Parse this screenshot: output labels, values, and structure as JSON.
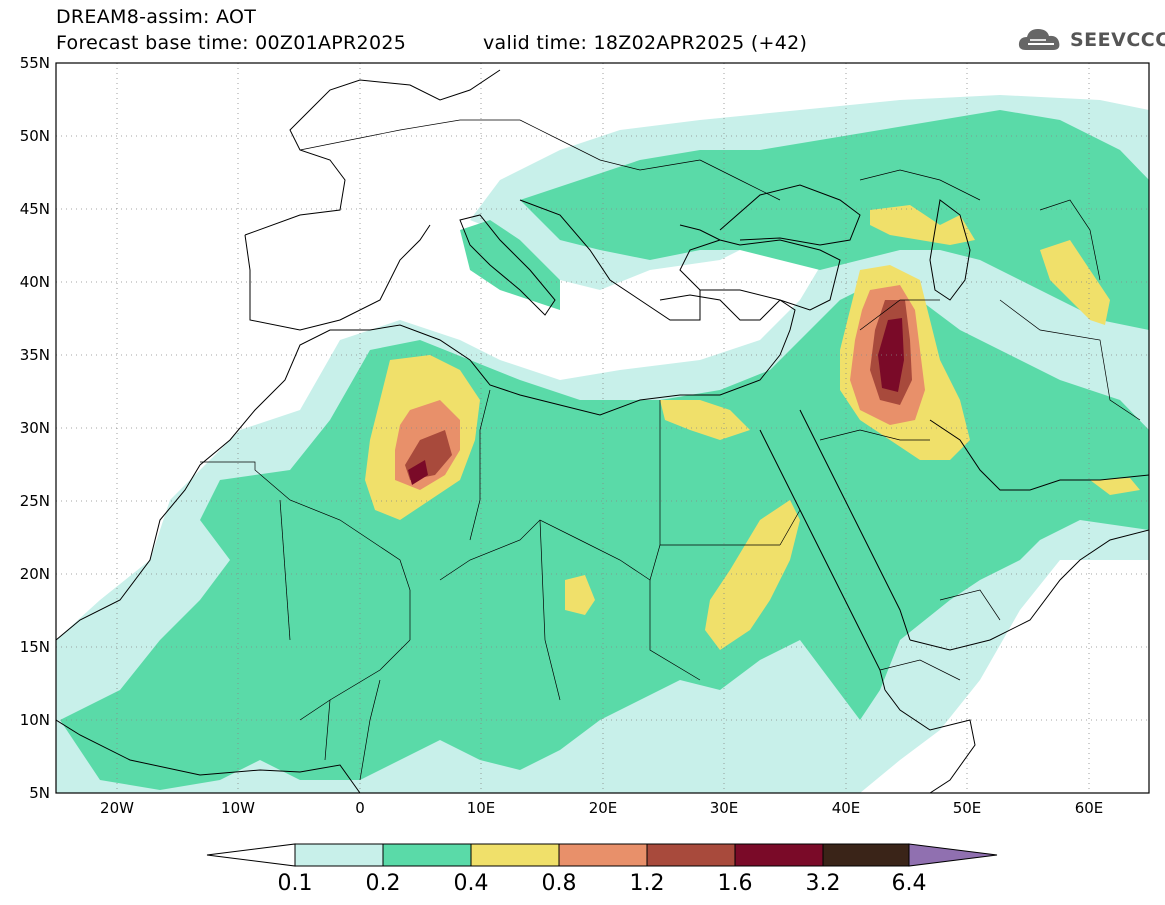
{
  "header": {
    "title": "DREAM8-assim: AOT",
    "base_time_label": "Forecast base time: 00Z01APR2025",
    "valid_time_label": "valid time: 18Z02APR2025 (+42)"
  },
  "logo": {
    "text": "SEEVCCC",
    "icon": "cloud-icon"
  },
  "map": {
    "lon_range": [
      -25,
      65
    ],
    "lat_range": [
      5,
      55
    ],
    "lat_ticks": [
      "55N",
      "50N",
      "45N",
      "40N",
      "35N",
      "30N",
      "25N",
      "20N",
      "15N",
      "10N",
      "5N"
    ],
    "lon_ticks": [
      "20W",
      "10W",
      "0",
      "10E",
      "20E",
      "30E",
      "40E",
      "50E",
      "60E"
    ]
  },
  "colorbar": {
    "levels": [
      "0.1",
      "0.2",
      "0.4",
      "0.8",
      "1.2",
      "1.6",
      "3.2",
      "6.4"
    ],
    "colors": [
      "#ffffff",
      "#c8f0ea",
      "#5adaa8",
      "#f0e06a",
      "#e8906a",
      "#a84a3c",
      "#7a0a28",
      "#3a2418",
      "#9070b0"
    ]
  },
  "aot_colors": {
    "very_light": "#c8f0ea",
    "light": "#5adaa8",
    "moderate": "#f0e06a",
    "high": "#e8906a",
    "very_high": "#a84a3c",
    "extreme": "#7a0a28"
  }
}
